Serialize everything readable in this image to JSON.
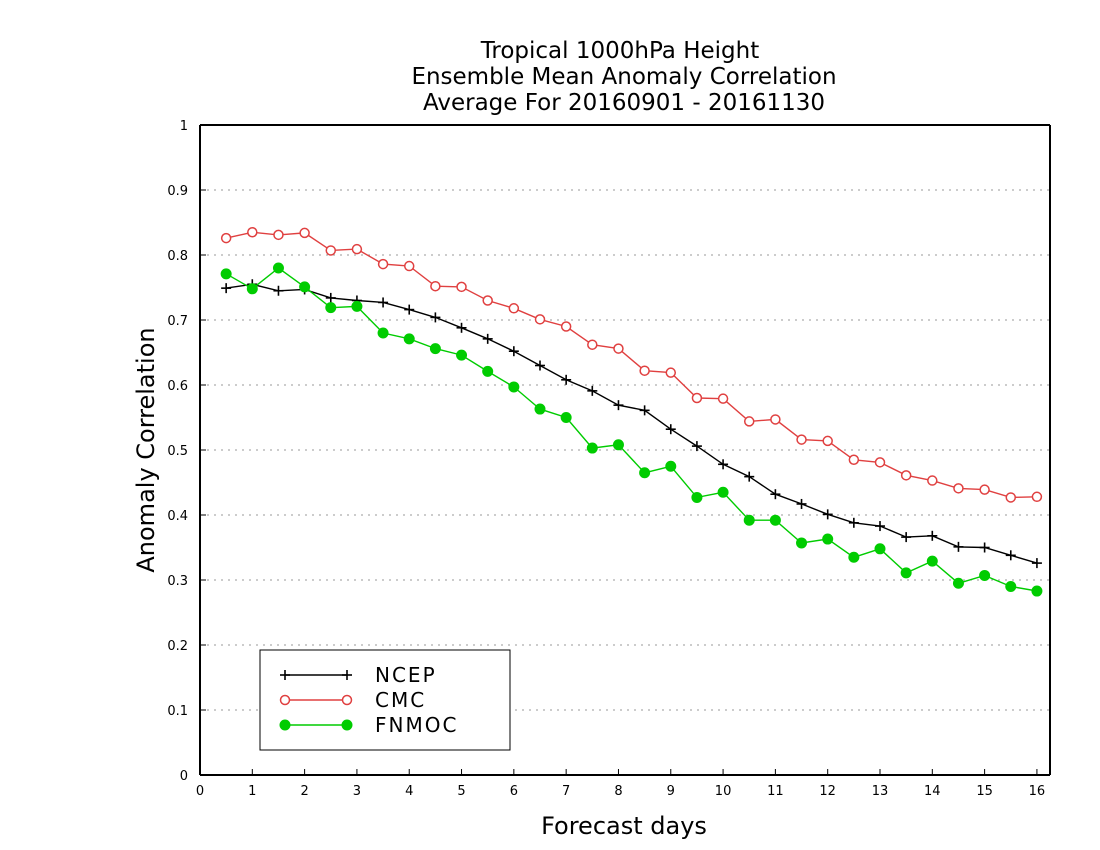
{
  "chart_data": {
    "type": "line",
    "title": [
      "Tropical 1000hPa Height",
      "Ensemble Mean Anomaly Correlation",
      "Average For 20160901 - 20161130"
    ],
    "xlabel": "Forecast days",
    "ylabel": "Anomaly Correlation",
    "xlim": [
      0,
      16.25
    ],
    "ylim": [
      0,
      1
    ],
    "xticks": [
      "0",
      "1",
      "2",
      "3",
      "4",
      "5",
      "6",
      "7",
      "8",
      "9",
      "10",
      "11",
      "12",
      "13",
      "14",
      "15",
      "16"
    ],
    "yticks": [
      "0",
      "0.1",
      "0.2",
      "0.3",
      "0.4",
      "0.5",
      "0.6",
      "0.7",
      "0.8",
      "0.9",
      "1"
    ],
    "grid": "horizontal dotted",
    "legend_position": "bottom-left",
    "x": [
      0.5,
      1,
      1.5,
      2,
      2.5,
      3,
      3.5,
      4,
      4.5,
      5,
      5.5,
      6,
      6.5,
      7,
      7.5,
      8,
      8.5,
      9,
      9.5,
      10,
      10.5,
      11,
      11.5,
      12,
      12.5,
      13,
      13.5,
      14,
      14.5,
      15,
      15.5,
      16
    ],
    "series": [
      {
        "name": "NCEP",
        "color": "#000000",
        "marker": "plus",
        "values": [
          0.749,
          0.755,
          0.745,
          0.747,
          0.734,
          0.73,
          0.727,
          0.716,
          0.704,
          0.688,
          0.671,
          0.652,
          0.63,
          0.608,
          0.591,
          0.569,
          0.561,
          0.532,
          0.506,
          0.478,
          0.459,
          0.432,
          0.417,
          0.401,
          0.388,
          0.383,
          0.366,
          0.368,
          0.351,
          0.35,
          0.338,
          0.326
        ]
      },
      {
        "name": "CMC",
        "color": "#e04040",
        "marker": "open-circle",
        "values": [
          0.826,
          0.835,
          0.831,
          0.834,
          0.807,
          0.809,
          0.786,
          0.783,
          0.752,
          0.751,
          0.73,
          0.718,
          0.701,
          0.69,
          0.662,
          0.656,
          0.622,
          0.619,
          0.58,
          0.579,
          0.544,
          0.547,
          0.516,
          0.514,
          0.485,
          0.481,
          0.461,
          0.453,
          0.441,
          0.439,
          0.427,
          0.428
        ]
      },
      {
        "name": "FNMOC",
        "color": "#00cc00",
        "marker": "filled-circle",
        "values": [
          0.771,
          0.748,
          0.78,
          0.751,
          0.719,
          0.721,
          0.68,
          0.671,
          0.656,
          0.646,
          0.621,
          0.597,
          0.563,
          0.55,
          0.503,
          0.508,
          0.465,
          0.475,
          0.427,
          0.435,
          0.392,
          0.392,
          0.357,
          0.363,
          0.335,
          0.348,
          0.311,
          0.329,
          0.295,
          0.307,
          0.29,
          0.283
        ]
      }
    ]
  }
}
